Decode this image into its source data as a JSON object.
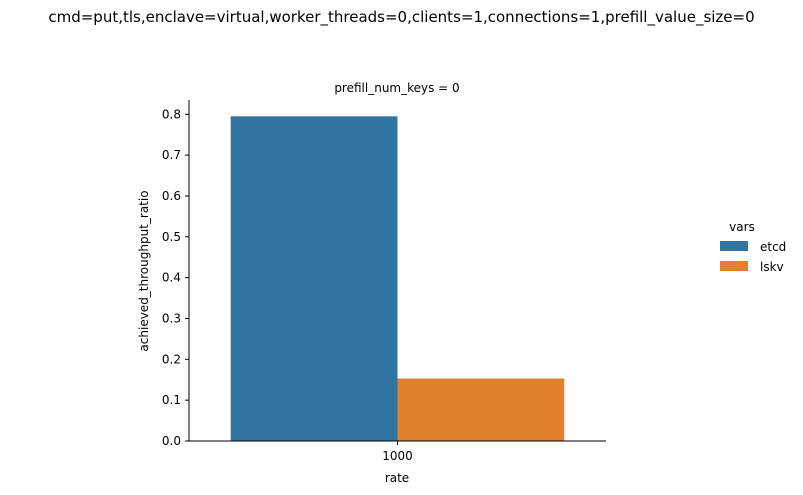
{
  "chart_data": {
    "type": "bar",
    "title": "cmd=put,tls,enclave=virtual,worker_threads=0,clients=1,connections=1,prefill_value_size=0",
    "subplot_title": "prefill_num_keys = 0",
    "xlabel": "rate",
    "ylabel": "achieved_throughput_ratio",
    "categories": [
      "1000"
    ],
    "yticks": [
      "0.0",
      "0.1",
      "0.2",
      "0.3",
      "0.4",
      "0.5",
      "0.6",
      "0.7",
      "0.8"
    ],
    "ylim": [
      0,
      0.835
    ],
    "legend_title": "vars",
    "legend_placement": "right",
    "grid": false,
    "series": [
      {
        "name": "etcd",
        "values": [
          0.795
        ],
        "color": "#3274a1"
      },
      {
        "name": "lskv",
        "values": [
          0.153
        ],
        "color": "#e1812c"
      }
    ]
  }
}
